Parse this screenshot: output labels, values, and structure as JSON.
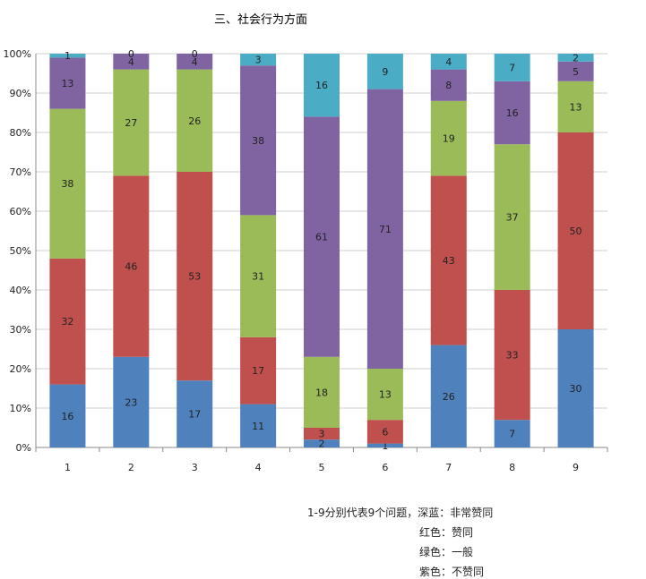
{
  "chart_data": {
    "type": "bar",
    "stacked": "percent",
    "title": "三、社会行为方面",
    "categories": [
      "1",
      "2",
      "3",
      "4",
      "5",
      "6",
      "7",
      "8",
      "9"
    ],
    "y_ticks": [
      "0%",
      "10%",
      "20%",
      "30%",
      "40%",
      "50%",
      "60%",
      "70%",
      "80%",
      "90%",
      "100%"
    ],
    "ylim": [
      0,
      100
    ],
    "grid": true,
    "series": [
      {
        "values": [
          16,
          23,
          17,
          11,
          2,
          1,
          26,
          7,
          30
        ],
        "color": "#4f81bd"
      },
      {
        "values": [
          32,
          46,
          53,
          17,
          3,
          6,
          43,
          33,
          50
        ],
        "color": "#c0504d"
      },
      {
        "values": [
          38,
          27,
          26,
          31,
          18,
          13,
          19,
          37,
          13
        ],
        "color": "#9bbb59"
      },
      {
        "values": [
          13,
          4,
          4,
          38,
          61,
          71,
          8,
          16,
          5
        ],
        "color": "#8064a2"
      },
      {
        "values": [
          1,
          0,
          0,
          3,
          16,
          9,
          4,
          7,
          2
        ],
        "color": "#4bacc6"
      }
    ],
    "notes": [
      "1-9分别代表9个问题，深蓝：非常赞同",
      "红色：赞同",
      "绿色：一般",
      "紫色：不赞同"
    ]
  }
}
